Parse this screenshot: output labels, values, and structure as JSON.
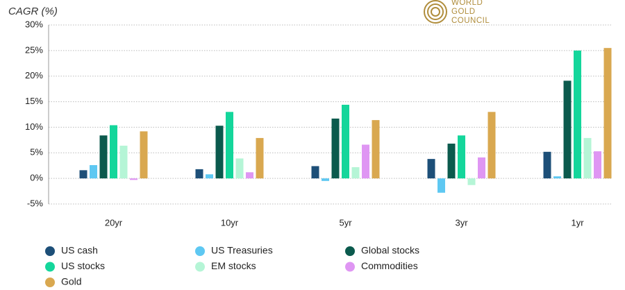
{
  "chart_data": {
    "type": "bar",
    "title": "CAGR (%)",
    "logo": [
      "WORLD",
      "GOLD",
      "COUNCIL"
    ],
    "categories": [
      "20yr",
      "10yr",
      "5yr",
      "3yr",
      "1yr"
    ],
    "series": [
      {
        "name": "US cash",
        "color": "#1d4f78",
        "values": [
          1.6,
          1.8,
          2.4,
          3.8,
          5.2
        ]
      },
      {
        "name": "US Treasuries",
        "color": "#5ec8f2",
        "values": [
          2.6,
          0.8,
          -0.5,
          -2.8,
          0.4
        ]
      },
      {
        "name": "Global stocks",
        "color": "#0b5a4d",
        "values": [
          8.4,
          10.3,
          11.7,
          6.8,
          19.1
        ]
      },
      {
        "name": "US stocks",
        "color": "#14d69b",
        "values": [
          10.4,
          13.0,
          14.4,
          8.4,
          25.0
        ]
      },
      {
        "name": "EM stocks",
        "color": "#b5f5d6",
        "values": [
          6.4,
          3.9,
          2.2,
          -1.3,
          7.9
        ]
      },
      {
        "name": "Commodities",
        "color": "#df96f3",
        "values": [
          -0.3,
          1.2,
          6.6,
          4.1,
          5.3
        ]
      },
      {
        "name": "Gold",
        "color": "#d9a850",
        "values": [
          9.2,
          7.9,
          11.4,
          13.0,
          25.5
        ]
      }
    ],
    "ylim": [
      -5,
      30
    ],
    "yticks": [
      {
        "value": -5,
        "label": "-5%"
      },
      {
        "value": 0,
        "label": "0%"
      },
      {
        "value": 5,
        "label": "5%"
      },
      {
        "value": 10,
        "label": "10%"
      },
      {
        "value": 15,
        "label": "15%"
      },
      {
        "value": 20,
        "label": "20%"
      },
      {
        "value": 25,
        "label": "25%"
      },
      {
        "value": 30,
        "label": "30%"
      }
    ],
    "grid": true,
    "legend": "bottom"
  }
}
